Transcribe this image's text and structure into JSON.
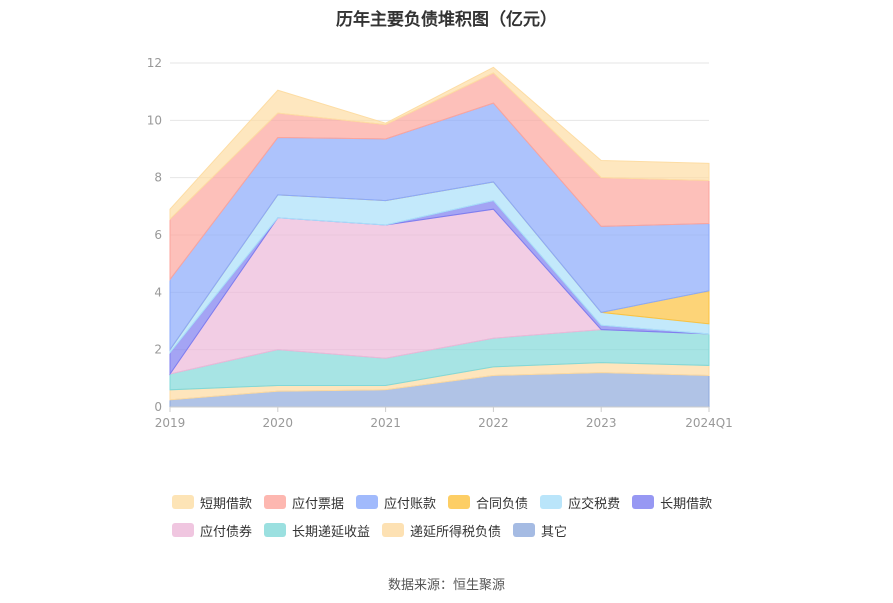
{
  "title": "历年主要负债堆积图（亿元）",
  "source": "数据来源：恒生聚源",
  "chart_data": {
    "type": "area",
    "stacked": true,
    "categories": [
      "2019",
      "2020",
      "2021",
      "2022",
      "2023",
      "2024Q1"
    ],
    "y_ticks": [
      "0",
      "2",
      "4",
      "6",
      "8",
      "10",
      "12"
    ],
    "ylim": [
      0,
      12
    ],
    "grid": true,
    "legend_position": "bottom",
    "series": [
      {
        "name": "其它",
        "color": "#8eaadc",
        "values": [
          0.25,
          0.55,
          0.6,
          1.1,
          1.2,
          1.1
        ]
      },
      {
        "name": "递延所得税负债",
        "color": "#fddaa0",
        "values": [
          0.35,
          0.2,
          0.15,
          0.3,
          0.35,
          0.35
        ]
      },
      {
        "name": "长期递延收益",
        "color": "#82d8d8",
        "values": [
          0.55,
          1.25,
          0.95,
          1.0,
          1.15,
          1.1
        ]
      },
      {
        "name": "应付债券",
        "color": "#ecb8d8",
        "values": [
          0.0,
          4.6,
          4.65,
          4.5,
          0.0,
          0.0
        ]
      },
      {
        "name": "长期借款",
        "color": "#7d7ef0",
        "values": [
          0.75,
          0.0,
          0.0,
          0.3,
          0.15,
          0.0
        ]
      },
      {
        "name": "应交税费",
        "color": "#a9dff9",
        "values": [
          0.1,
          0.8,
          0.85,
          0.65,
          0.45,
          0.35
        ]
      },
      {
        "name": "合同负债",
        "color": "#fcc23e",
        "values": [
          0.0,
          0.0,
          0.0,
          0.0,
          0.0,
          1.15
        ]
      },
      {
        "name": "应付账款",
        "color": "#8aa9fb",
        "values": [
          2.45,
          2.0,
          2.15,
          2.75,
          3.0,
          2.35
        ]
      },
      {
        "name": "应付票据",
        "color": "#fca59c",
        "values": [
          2.1,
          0.85,
          0.5,
          1.05,
          1.7,
          1.5
        ]
      },
      {
        "name": "短期借款",
        "color": "#fddda4",
        "values": [
          0.35,
          0.8,
          0.05,
          0.2,
          0.6,
          0.6
        ]
      }
    ],
    "legend_order": [
      "短期借款",
      "应付票据",
      "应付账款",
      "合同负债",
      "应交税费",
      "长期借款",
      "应付债券",
      "长期递延收益",
      "递延所得税负债",
      "其它"
    ]
  }
}
